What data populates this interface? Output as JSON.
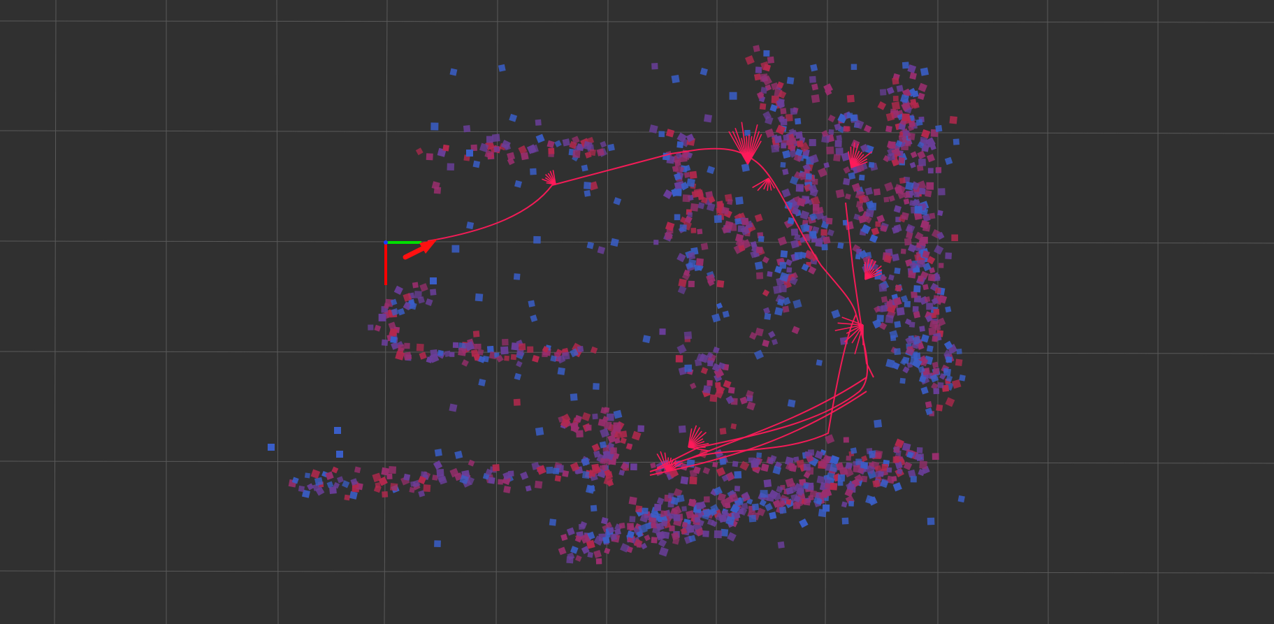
{
  "scene": {
    "background_color": "#303030",
    "grid_color": "#5a5a5a",
    "trajectory_color": "#ff1a5a",
    "point_colors": {
      "blue": "#3a5ec8",
      "purple": "#6a3e9a",
      "magenta": "#9a2e6e",
      "red": "#b4284e"
    },
    "axes": {
      "x_axis_color": "#ff0000",
      "y_axis_color": "#00e000",
      "z_axis_color": "#1a3cff"
    },
    "pose_arrow": {
      "color": "#ff1010",
      "icon": "pose-arrow-icon"
    }
  }
}
